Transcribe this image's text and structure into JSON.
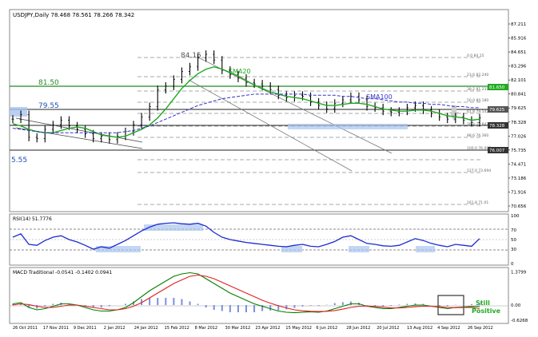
{
  "header": {
    "symbol_line": "USDJPY,Daily  78.468 78.561 78.266 78.342"
  },
  "annotations": {
    "peak": "84.15",
    "level_8150": "81.50",
    "level_7955": "79.55",
    "low": "5.55",
    "sma20": "SMA20",
    "sma100": "SMA100",
    "still_positive_line1": "Still",
    "still_positive_line2": "Positive"
  },
  "colors": {
    "price_bars": "#000000",
    "sma20": "#1fa81f",
    "sma100": "#3333cc",
    "rsi": "#1c2bd1",
    "rsi_highlight": "#aac4ee",
    "macd_line": "#008000",
    "signal_line": "#e02020",
    "histogram": "#7a8fe0",
    "level_8150_box": "#22aa22",
    "level_7955_box": "#555555",
    "current_price_box": "#333333",
    "still_positive_text": "#22aa22"
  },
  "chart_data": [
    {
      "type": "line",
      "panel": "price",
      "title": "USDJPY,Daily",
      "y_axis_ticks": [
        "87.211",
        "85.916",
        "84.651",
        "83.296",
        "82.101",
        "80.841",
        "79.625",
        "78.328",
        "77.026",
        "75.735",
        "74.471",
        "73.186",
        "71.916",
        "70.656"
      ],
      "ylim": [
        70.2,
        87.7
      ],
      "price_boxes": [
        "81.650",
        "79.625",
        "78.328",
        "76.007"
      ],
      "fibonacci_labels": [
        "0.0  84.15",
        "23.6  82.240",
        "38.2  81.231",
        "50.0  80.180",
        "61.8  79.142",
        "76.4  77.847",
        "88.6  76.360",
        "100.0  76.007",
        "161.8  71.01",
        "127.0  73.694"
      ],
      "horizontal_levels": [
        81.5,
        79.55,
        78.328,
        76.007
      ],
      "series": [
        {
          "name": "USDJPY",
          "values": [
            78.2,
            78.6,
            76.6,
            76.5,
            77.3,
            77.7,
            78.1,
            77.6,
            77.3,
            76.9,
            76.5,
            76.7,
            76.4,
            76.7,
            77.1,
            77.7,
            78.4,
            79.3,
            80.8,
            81.1,
            81.7,
            82.4,
            82.8,
            83.6,
            83.9,
            83.4,
            82.5,
            82.1,
            81.8,
            81.4,
            81.3,
            81.1,
            80.8,
            80.3,
            80.1,
            80.3,
            80.2,
            79.7,
            79.4,
            79.1,
            79.6,
            79.9,
            80.2,
            79.9,
            79.3,
            79.2,
            78.9,
            78.8,
            78.9,
            79.2,
            79.4,
            79.0,
            78.7,
            78.4,
            78.2,
            78.4,
            78.1,
            77.9,
            78.3
          ]
        },
        {
          "name": "SMA20",
          "values": [
            77.8,
            77.6,
            77.3,
            77.1,
            77.0,
            77.0,
            77.2,
            77.4,
            77.5,
            77.4,
            77.1,
            76.8,
            76.7,
            76.6,
            76.7,
            77.0,
            77.3,
            77.7,
            78.3,
            79.1,
            80.0,
            80.9,
            81.6,
            82.2,
            82.6,
            82.8,
            82.6,
            82.3,
            82.0,
            81.6,
            81.2,
            80.9,
            80.6,
            80.4,
            80.2,
            80.1,
            80.0,
            79.8,
            79.6,
            79.4,
            79.4,
            79.5,
            79.6,
            79.6,
            79.5,
            79.3,
            79.1,
            79.0,
            78.9,
            78.9,
            79.0,
            79.0,
            78.9,
            78.7,
            78.5,
            78.4,
            78.3,
            78.1,
            78.2
          ]
        },
        {
          "name": "SMA100",
          "values": [
            77.4,
            77.3,
            77.2,
            77.1,
            77.0,
            77.0,
            77.0,
            77.0,
            77.0,
            77.0,
            77.0,
            77.0,
            77.0,
            77.0,
            77.1,
            77.2,
            77.4,
            77.6,
            77.9,
            78.2,
            78.5,
            78.8,
            79.1,
            79.4,
            79.6,
            79.8,
            80.0,
            80.1,
            80.2,
            80.3,
            80.4,
            80.4,
            80.4,
            80.4,
            80.4,
            80.4,
            80.4,
            80.3,
            80.3,
            80.3,
            80.3,
            80.2,
            80.2,
            80.1,
            80.0,
            80.0,
            79.9,
            79.8,
            79.7,
            79.7,
            79.6,
            79.6,
            79.5,
            79.5,
            79.4,
            79.3,
            79.3,
            79.2,
            79.2
          ]
        }
      ]
    },
    {
      "type": "line",
      "panel": "rsi",
      "title": "RSI(14) 51.7776",
      "y_axis_ticks": [
        "100",
        "70",
        "50",
        "30",
        "0"
      ],
      "ylim": [
        0,
        100
      ],
      "series": [
        {
          "name": "RSI(14)",
          "values": [
            55,
            62,
            40,
            38,
            48,
            55,
            58,
            50,
            45,
            38,
            30,
            35,
            32,
            40,
            48,
            58,
            68,
            76,
            82,
            84,
            85,
            83,
            82,
            84,
            78,
            65,
            55,
            50,
            47,
            44,
            42,
            40,
            38,
            36,
            35,
            38,
            40,
            36,
            35,
            40,
            46,
            55,
            58,
            50,
            42,
            40,
            37,
            36,
            38,
            45,
            52,
            48,
            42,
            38,
            35,
            40,
            38,
            36,
            52
          ]
        }
      ]
    },
    {
      "type": "bar",
      "panel": "macd",
      "title": "MACD Traditional -0.0541 -0.1402 0.0941",
      "y_axis_ticks": [
        "1.3799",
        "0.00",
        "-0.6268"
      ],
      "ylim": [
        -0.7,
        1.5
      ],
      "x_tick_labels": [
        "26 Oct 2011",
        "17 Nov 2011",
        "9 Dec 2011",
        "2 Jan 2012",
        "24 Jan 2012",
        "15 Feb 2012",
        "8 Mar 2012",
        "30 Mar 2012",
        "23 Apr 2012",
        "15 May 2012",
        "6 Jun 2012",
        "28 Jun 2012",
        "20 Jul 2012",
        "13 Aug 2012",
        "4 Sep 2012",
        "26 Sep 2012"
      ],
      "series": [
        {
          "name": "MACD",
          "values": [
            0.05,
            0.1,
            -0.1,
            -0.2,
            -0.15,
            -0.05,
            0.05,
            0.05,
            0.0,
            -0.1,
            -0.2,
            -0.25,
            -0.25,
            -0.2,
            -0.1,
            0.1,
            0.35,
            0.6,
            0.8,
            1.0,
            1.2,
            1.3,
            1.35,
            1.3,
            1.1,
            0.9,
            0.7,
            0.5,
            0.35,
            0.2,
            0.05,
            -0.05,
            -0.15,
            -0.25,
            -0.3,
            -0.32,
            -0.3,
            -0.28,
            -0.3,
            -0.25,
            -0.15,
            -0.05,
            0.05,
            0.05,
            -0.05,
            -0.1,
            -0.15,
            -0.15,
            -0.1,
            -0.05,
            0.0,
            0.0,
            -0.05,
            -0.1,
            -0.15,
            -0.1,
            -0.08,
            -0.06,
            -0.05
          ]
        },
        {
          "name": "Signal",
          "values": [
            0.0,
            0.05,
            0.02,
            -0.05,
            -0.1,
            -0.1,
            -0.05,
            0.0,
            0.0,
            -0.05,
            -0.1,
            -0.15,
            -0.2,
            -0.2,
            -0.15,
            -0.05,
            0.1,
            0.3,
            0.5,
            0.7,
            0.9,
            1.05,
            1.2,
            1.25,
            1.2,
            1.1,
            0.95,
            0.8,
            0.65,
            0.5,
            0.35,
            0.2,
            0.08,
            -0.03,
            -0.12,
            -0.2,
            -0.24,
            -0.26,
            -0.27,
            -0.26,
            -0.23,
            -0.17,
            -0.1,
            -0.05,
            -0.04,
            -0.06,
            -0.09,
            -0.12,
            -0.12,
            -0.1,
            -0.07,
            -0.05,
            -0.05,
            -0.07,
            -0.1,
            -0.11,
            -0.1,
            -0.1,
            -0.14
          ]
        },
        {
          "name": "Histogram",
          "values": [
            0.05,
            0.05,
            -0.12,
            -0.15,
            -0.05,
            0.05,
            0.1,
            0.05,
            0.0,
            -0.05,
            -0.1,
            -0.1,
            -0.05,
            0.0,
            0.05,
            0.15,
            0.25,
            0.3,
            0.3,
            0.3,
            0.3,
            0.25,
            0.15,
            0.05,
            -0.1,
            -0.2,
            -0.25,
            -0.3,
            -0.3,
            -0.3,
            -0.3,
            -0.25,
            -0.23,
            -0.22,
            -0.18,
            -0.12,
            -0.06,
            -0.02,
            -0.03,
            0.01,
            0.08,
            0.12,
            0.15,
            0.1,
            -0.01,
            -0.04,
            -0.06,
            -0.03,
            0.02,
            0.05,
            0.07,
            0.05,
            0.0,
            -0.03,
            -0.05,
            0.01,
            0.02,
            0.04,
            0.09
          ]
        }
      ]
    }
  ]
}
